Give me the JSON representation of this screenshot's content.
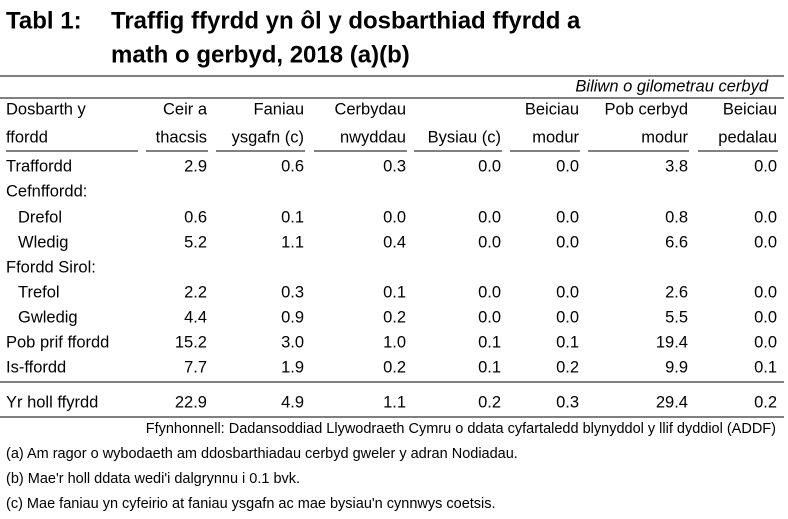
{
  "title": {
    "label": "Tabl 1:",
    "line1": "Traffig ffyrdd yn ôl y dosbarthiad ffyrdd a",
    "line2": "math o gerbyd, 2018 (a)(b)"
  },
  "unit": "Biliwn o gilometrau cerbyd",
  "table": {
    "headers": [
      [
        "Dosbarth y",
        "ffordd"
      ],
      [
        "Ceir a",
        "thacsis"
      ],
      [
        "Faniau",
        "ysgafn (c)"
      ],
      [
        "Cerbydau",
        "nwyddau"
      ],
      [
        "Bysiau (c)"
      ],
      [
        "Beiciau",
        "modur"
      ],
      [
        "Pob cerbyd",
        "modur"
      ],
      [
        "Beiciau",
        "pedalau"
      ]
    ],
    "rows": [
      {
        "label": "Traffordd",
        "values": [
          "2.9",
          "0.6",
          "0.3",
          "0.0",
          "0.0",
          "3.8",
          "0.0"
        ]
      },
      {
        "label": "Cefnffordd:"
      },
      {
        "label": "Drefol",
        "values": [
          "0.6",
          "0.1",
          "0.0",
          "0.0",
          "0.0",
          "0.8",
          "0.0"
        ]
      },
      {
        "label": "Wledig",
        "values": [
          "5.2",
          "1.1",
          "0.4",
          "0.0",
          "0.0",
          "6.6",
          "0.0"
        ]
      },
      {
        "label": "Ffordd Sirol:"
      },
      {
        "label": "Trefol",
        "values": [
          "2.2",
          "0.3",
          "0.1",
          "0.0",
          "0.0",
          "2.6",
          "0.0"
        ]
      },
      {
        "label": "Gwledig",
        "values": [
          "4.4",
          "0.9",
          "0.2",
          "0.0",
          "0.0",
          "5.5",
          "0.0"
        ]
      },
      {
        "label": "Pob prif ffordd",
        "values": [
          "15.2",
          "3.0",
          "1.0",
          "0.1",
          "0.1",
          "19.4",
          "0.0"
        ]
      },
      {
        "label": "Is-ffordd",
        "values": [
          "7.7",
          "1.9",
          "0.2",
          "0.1",
          "0.2",
          "9.9",
          "0.1"
        ]
      },
      {
        "label": "Yr holl ffyrdd",
        "values": [
          "22.9",
          "4.9",
          "1.1",
          "0.2",
          "0.3",
          "29.4",
          "0.2"
        ]
      }
    ]
  },
  "source": "Ffynhonnell: Dadansoddiad Llywodraeth Cymru o ddata cyfartaledd blynyddol y llif dyddiol (ADDF)",
  "notes": [
    "(a) Am ragor o wybodaeth am ddosbarthiadau cerbyd gweler y adran Nodiadau.",
    "(b) Mae'r holl ddata wedi'i dalgrynnu i 0.1 bvk.",
    "(c) Mae faniau yn cyfeirio at faniau ysgafn ac mae bysiau'n cynnwys coetsis."
  ]
}
